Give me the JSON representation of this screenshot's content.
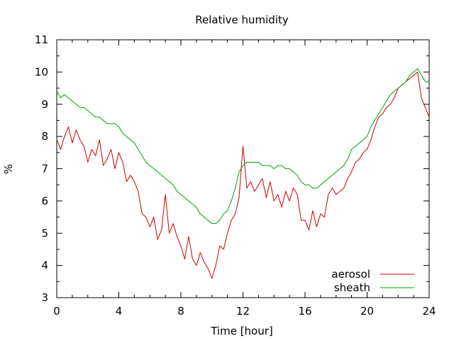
{
  "chart_data": {
    "type": "line",
    "title": "Relative humidity",
    "xlabel": "Time [hour]",
    "ylabel": "%",
    "xlim": [
      0,
      24
    ],
    "ylim": [
      3,
      11
    ],
    "xticks": [
      0,
      4,
      8,
      12,
      16,
      20,
      24
    ],
    "yticks": [
      3,
      4,
      5,
      6,
      7,
      8,
      9,
      10,
      11
    ],
    "grid": false,
    "legend_position": "bottom-right",
    "series": [
      {
        "name": "aerosol",
        "color": "#cc0000",
        "x": [
          0,
          0.25,
          0.5,
          0.75,
          1,
          1.25,
          1.5,
          1.75,
          2,
          2.25,
          2.5,
          2.75,
          3,
          3.25,
          3.5,
          3.75,
          4,
          4.25,
          4.5,
          4.75,
          5,
          5.25,
          5.5,
          5.75,
          6,
          6.25,
          6.5,
          6.75,
          7,
          7.25,
          7.5,
          7.75,
          8,
          8.25,
          8.5,
          8.75,
          9,
          9.25,
          9.5,
          9.75,
          10,
          10.25,
          10.5,
          10.75,
          11,
          11.25,
          11.5,
          11.75,
          12,
          12.25,
          12.5,
          12.75,
          13,
          13.25,
          13.5,
          13.75,
          14,
          14.25,
          14.5,
          14.75,
          15,
          15.25,
          15.5,
          15.75,
          16,
          16.25,
          16.5,
          16.75,
          17,
          17.25,
          17.5,
          17.75,
          18,
          18.25,
          18.5,
          18.75,
          19,
          19.25,
          19.5,
          19.75,
          20,
          20.25,
          20.5,
          20.75,
          21,
          21.25,
          21.5,
          21.75,
          22,
          22.25,
          22.5,
          22.75,
          23,
          23.25,
          23.5,
          23.75,
          24
        ],
        "values": [
          7.9,
          7.6,
          8.0,
          8.3,
          7.8,
          8.2,
          7.9,
          7.7,
          7.2,
          7.6,
          7.4,
          7.9,
          7.1,
          7.3,
          7.6,
          7.0,
          7.5,
          7.2,
          6.6,
          6.8,
          6.6,
          6.3,
          5.6,
          5.5,
          5.2,
          5.5,
          4.8,
          5.1,
          6.2,
          5.0,
          5.3,
          4.9,
          4.6,
          4.2,
          4.9,
          4.2,
          4.0,
          4.4,
          4.1,
          3.9,
          3.6,
          4.0,
          4.6,
          4.5,
          5.0,
          5.4,
          5.6,
          6.1,
          7.7,
          6.4,
          6.6,
          6.3,
          6.5,
          6.7,
          6.1,
          6.6,
          6.0,
          6.2,
          5.8,
          6.3,
          6.0,
          6.4,
          6.2,
          5.4,
          5.4,
          5.1,
          5.7,
          5.2,
          5.6,
          5.5,
          6.2,
          6.4,
          6.2,
          6.3,
          6.4,
          6.7,
          6.9,
          7.2,
          7.3,
          7.5,
          7.6,
          7.9,
          8.3,
          8.6,
          8.7,
          8.9,
          9.0,
          9.2,
          9.5,
          9.6,
          9.7,
          9.8,
          9.9,
          10.0,
          9.2,
          8.9,
          8.6
        ]
      },
      {
        "name": "sheath",
        "color": "#00a000",
        "x": [
          0,
          0.25,
          0.5,
          0.75,
          1,
          1.25,
          1.5,
          1.75,
          2,
          2.25,
          2.5,
          2.75,
          3,
          3.25,
          3.5,
          3.75,
          4,
          4.25,
          4.5,
          4.75,
          5,
          5.25,
          5.5,
          5.75,
          6,
          6.25,
          6.5,
          6.75,
          7,
          7.25,
          7.5,
          7.75,
          8,
          8.25,
          8.5,
          8.75,
          9,
          9.25,
          9.5,
          9.75,
          10,
          10.25,
          10.5,
          10.75,
          11,
          11.25,
          11.5,
          11.75,
          12,
          12.25,
          12.5,
          12.75,
          13,
          13.25,
          13.5,
          13.75,
          14,
          14.25,
          14.5,
          14.75,
          15,
          15.25,
          15.5,
          15.75,
          16,
          16.25,
          16.5,
          16.75,
          17,
          17.25,
          17.5,
          17.75,
          18,
          18.25,
          18.5,
          18.75,
          19,
          19.25,
          19.5,
          19.75,
          20,
          20.25,
          20.5,
          20.75,
          21,
          21.25,
          21.5,
          21.75,
          22,
          22.25,
          22.5,
          22.75,
          23,
          23.25,
          23.5,
          23.75,
          24
        ],
        "values": [
          9.4,
          9.2,
          9.3,
          9.2,
          9.1,
          9.0,
          8.9,
          8.9,
          8.8,
          8.7,
          8.6,
          8.6,
          8.5,
          8.4,
          8.4,
          8.4,
          8.3,
          8.1,
          8.0,
          7.9,
          7.8,
          7.6,
          7.4,
          7.2,
          7.1,
          7.0,
          6.9,
          6.8,
          6.7,
          6.6,
          6.5,
          6.3,
          6.2,
          6.1,
          6.0,
          5.9,
          5.8,
          5.6,
          5.5,
          5.4,
          5.3,
          5.3,
          5.4,
          5.6,
          5.7,
          6.0,
          6.4,
          6.9,
          7.1,
          7.2,
          7.2,
          7.2,
          7.2,
          7.1,
          7.1,
          7.1,
          7.0,
          7.1,
          7.1,
          7.0,
          7.0,
          6.9,
          6.8,
          6.6,
          6.5,
          6.5,
          6.4,
          6.4,
          6.5,
          6.6,
          6.7,
          6.8,
          6.9,
          7.0,
          7.1,
          7.3,
          7.6,
          7.7,
          7.8,
          7.9,
          8.0,
          8.3,
          8.5,
          8.7,
          8.9,
          9.1,
          9.3,
          9.4,
          9.5,
          9.6,
          9.7,
          9.9,
          10.0,
          10.1,
          9.9,
          9.7,
          9.7
        ]
      }
    ]
  }
}
